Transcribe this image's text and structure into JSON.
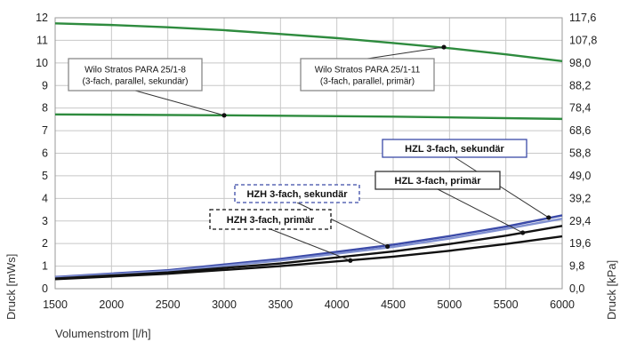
{
  "chart_data": {
    "type": "line",
    "xlabel": "Volumenstrom [l/h]",
    "ylabel": "Druck [mWs]",
    "y2label": "Druck [kPa]",
    "xlim": [
      1500,
      6000
    ],
    "ylim": [
      0,
      12
    ],
    "x_ticks": [
      "1500",
      "2000",
      "2500",
      "3000",
      "3500",
      "4000",
      "4500",
      "5000",
      "5500",
      "6000"
    ],
    "y_ticks": [
      "0",
      "1",
      "2",
      "3",
      "4",
      "5",
      "6",
      "7",
      "8",
      "9",
      "10",
      "11",
      "12"
    ],
    "y2_ticks": [
      "0,0",
      "9,8",
      "19,6",
      "29,4",
      "39,2",
      "49,0",
      "58,8",
      "68,6",
      "78,4",
      "88,2",
      "98,0",
      "107,8",
      "117,6"
    ],
    "grid": true,
    "series": [
      {
        "name": "Wilo Stratos PARA 25/1-11 (3-fach, parallel, primär)",
        "color": "#2e8b3e",
        "x": [
          1500,
          2000,
          2500,
          3000,
          3500,
          4000,
          4500,
          5000,
          5500,
          6000
        ],
        "y": [
          11.75,
          11.68,
          11.58,
          11.45,
          11.28,
          11.1,
          10.88,
          10.65,
          10.38,
          10.08
        ]
      },
      {
        "name": "Wilo Stratos PARA 25/1-8 (3-fach, parallel, sekundär)",
        "color": "#2e8b3e",
        "x": [
          1500,
          3000,
          4500,
          6000
        ],
        "y": [
          7.72,
          7.68,
          7.62,
          7.52
        ]
      },
      {
        "name": "HZL 3-fach, sekundär",
        "color": "#3b4aa8",
        "x": [
          1500,
          2500,
          3500,
          4500,
          5000,
          5500,
          6000
        ],
        "y": [
          0.52,
          0.82,
          1.32,
          1.95,
          2.33,
          2.75,
          3.25
        ]
      },
      {
        "name": "HZH 3-fach, sekundär",
        "color": "#7f8fd0",
        "x": [
          1500,
          2500,
          3500,
          4500,
          5000,
          5500,
          6000
        ],
        "y": [
          0.5,
          0.78,
          1.25,
          1.85,
          2.22,
          2.65,
          3.1
        ]
      },
      {
        "name": "HZL 3-fach, primär",
        "color": "#111111",
        "x": [
          1500,
          2500,
          3500,
          4500,
          5000,
          5500,
          6000
        ],
        "y": [
          0.45,
          0.72,
          1.12,
          1.65,
          1.98,
          2.35,
          2.78
        ]
      },
      {
        "name": "HZH 3-fach, primär",
        "color": "#111111",
        "x": [
          1500,
          2500,
          3500,
          4500,
          5000,
          5500,
          6000
        ],
        "y": [
          0.42,
          0.66,
          1.0,
          1.42,
          1.68,
          1.98,
          2.32
        ]
      }
    ],
    "annotations": [
      {
        "lines": [
          "Wilo Stratos PARA 25/1-8",
          "(3-fach, parallel, sekundär)"
        ],
        "style": "solid",
        "color": "#888888",
        "point": [
          3000,
          7.68
        ],
        "bold": false
      },
      {
        "lines": [
          "Wilo Stratos PARA 25/1-11",
          "(3-fach, parallel, primär)"
        ],
        "style": "solid",
        "color": "#888888",
        "point": [
          4950,
          10.7
        ],
        "bold": false
      },
      {
        "lines": [
          "HZL 3-fach, sekundär"
        ],
        "style": "solid",
        "color": "#3b4aa8",
        "point": [
          5880,
          3.15
        ],
        "bold": true
      },
      {
        "lines": [
          "HZL 3-fach, primär"
        ],
        "style": "solid",
        "color": "#333333",
        "point": [
          5650,
          2.48
        ],
        "bold": true
      },
      {
        "lines": [
          "HZH 3-fach, sekundär"
        ],
        "style": "dashed",
        "color": "#3b4aa8",
        "point": [
          4450,
          1.87
        ],
        "bold": true
      },
      {
        "lines": [
          "HZH 3-fach, primär"
        ],
        "style": "dashed",
        "color": "#111111",
        "point": [
          4120,
          1.25
        ],
        "bold": true
      }
    ]
  }
}
